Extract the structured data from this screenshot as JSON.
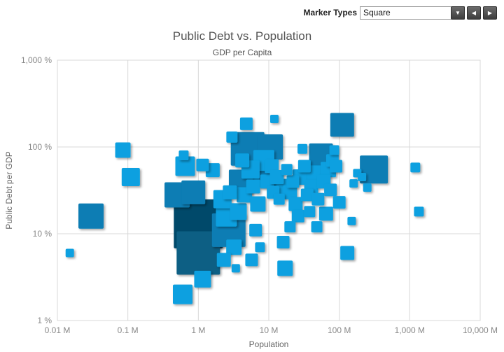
{
  "toolbar": {
    "label": "Marker Types",
    "selected": "Square",
    "dropdown_icon": "chevron-down-icon",
    "prev_icon": "chevron-left-icon",
    "next_icon": "chevron-right-icon"
  },
  "colors": {
    "light": "#0aa0e0",
    "medium": "#0a7db4",
    "dark": "#085f84",
    "darkest": "#064a6a"
  },
  "chart_data": {
    "type": "scatter",
    "title": "Public Debt vs. Population",
    "subtitle": "GDP per Capita",
    "xlabel": "Population",
    "ylabel": "Public Debt per GDP",
    "xscale": "log",
    "yscale": "log",
    "xlim": [
      10000,
      10000000000
    ],
    "ylim": [
      1,
      1000
    ],
    "x_ticks": [
      "0.01 M",
      "0.1 M",
      "1 M",
      "10 M",
      "100 M",
      "1,000 M",
      "10,000 M"
    ],
    "y_ticks": [
      "1 %",
      "10 %",
      "100 %",
      "1,000 %"
    ],
    "grid": true,
    "marker": "square",
    "points": [
      {
        "x": 15000,
        "y": 6,
        "size": 12,
        "shade": "light"
      },
      {
        "x": 30000,
        "y": 16,
        "size": 36,
        "shade": "medium"
      },
      {
        "x": 85000,
        "y": 92,
        "size": 22,
        "shade": "light"
      },
      {
        "x": 110000,
        "y": 45,
        "size": 26,
        "shade": "light"
      },
      {
        "x": 500000,
        "y": 28,
        "size": 36,
        "shade": "medium"
      },
      {
        "x": 620000,
        "y": 80,
        "size": 14,
        "shade": "light"
      },
      {
        "x": 650000,
        "y": 60,
        "size": 28,
        "shade": "light"
      },
      {
        "x": 850000,
        "y": 30,
        "size": 34,
        "shade": "medium"
      },
      {
        "x": 1000000,
        "y": 13,
        "size": 70,
        "shade": "darkest"
      },
      {
        "x": 1000000,
        "y": 6,
        "size": 62,
        "shade": "dark"
      },
      {
        "x": 600000,
        "y": 2,
        "size": 28,
        "shade": "light"
      },
      {
        "x": 1150000,
        "y": 3,
        "size": 24,
        "shade": "light"
      },
      {
        "x": 1150000,
        "y": 62,
        "size": 18,
        "shade": "light"
      },
      {
        "x": 1600000,
        "y": 54,
        "size": 20,
        "shade": "light"
      },
      {
        "x": 2700000,
        "y": 11,
        "size": 48,
        "shade": "medium"
      },
      {
        "x": 2200000,
        "y": 25,
        "size": 26,
        "shade": "light"
      },
      {
        "x": 2500000,
        "y": 16,
        "size": 30,
        "shade": "light"
      },
      {
        "x": 2300000,
        "y": 5,
        "size": 20,
        "shade": "light"
      },
      {
        "x": 3200000,
        "y": 7,
        "size": 22,
        "shade": "light"
      },
      {
        "x": 2800000,
        "y": 30,
        "size": 20,
        "shade": "light"
      },
      {
        "x": 3000000,
        "y": 130,
        "size": 16,
        "shade": "light"
      },
      {
        "x": 3400000,
        "y": 4,
        "size": 12,
        "shade": "light"
      },
      {
        "x": 3700000,
        "y": 18,
        "size": 24,
        "shade": "light"
      },
      {
        "x": 4000000,
        "y": 40,
        "size": 34,
        "shade": "medium"
      },
      {
        "x": 4200000,
        "y": 70,
        "size": 20,
        "shade": "light"
      },
      {
        "x": 4500000,
        "y": 28,
        "size": 22,
        "shade": "light"
      },
      {
        "x": 4800000,
        "y": 185,
        "size": 18,
        "shade": "light"
      },
      {
        "x": 5000000,
        "y": 95,
        "size": 48,
        "shade": "medium"
      },
      {
        "x": 5500000,
        "y": 55,
        "size": 26,
        "shade": "light"
      },
      {
        "x": 6000000,
        "y": 35,
        "size": 20,
        "shade": "light"
      },
      {
        "x": 5700000,
        "y": 5,
        "size": 18,
        "shade": "light"
      },
      {
        "x": 6500000,
        "y": 11,
        "size": 18,
        "shade": "light"
      },
      {
        "x": 7000000,
        "y": 22,
        "size": 22,
        "shade": "light"
      },
      {
        "x": 7500000,
        "y": 7,
        "size": 14,
        "shade": "light"
      },
      {
        "x": 8000000,
        "y": 48,
        "size": 36,
        "shade": "medium"
      },
      {
        "x": 8500000,
        "y": 70,
        "size": 30,
        "shade": "light"
      },
      {
        "x": 9500000,
        "y": 40,
        "size": 20,
        "shade": "light"
      },
      {
        "x": 10500000,
        "y": 100,
        "size": 36,
        "shade": "medium"
      },
      {
        "x": 11000000,
        "y": 60,
        "size": 20,
        "shade": "light"
      },
      {
        "x": 11500000,
        "y": 30,
        "size": 18,
        "shade": "light"
      },
      {
        "x": 12000000,
        "y": 210,
        "size": 12,
        "shade": "light"
      },
      {
        "x": 13000000,
        "y": 45,
        "size": 20,
        "shade": "light"
      },
      {
        "x": 14000000,
        "y": 25,
        "size": 16,
        "shade": "light"
      },
      {
        "x": 15000000,
        "y": 35,
        "size": 22,
        "shade": "light"
      },
      {
        "x": 16000000,
        "y": 8,
        "size": 18,
        "shade": "light"
      },
      {
        "x": 17000000,
        "y": 4,
        "size": 22,
        "shade": "light"
      },
      {
        "x": 18000000,
        "y": 55,
        "size": 16,
        "shade": "light"
      },
      {
        "x": 20000000,
        "y": 30,
        "size": 20,
        "shade": "light"
      },
      {
        "x": 20000000,
        "y": 12,
        "size": 16,
        "shade": "light"
      },
      {
        "x": 22000000,
        "y": 40,
        "size": 18,
        "shade": "light"
      },
      {
        "x": 24000000,
        "y": 22,
        "size": 20,
        "shade": "light"
      },
      {
        "x": 26000000,
        "y": 16,
        "size": 18,
        "shade": "light"
      },
      {
        "x": 28000000,
        "y": 45,
        "size": 22,
        "shade": "light"
      },
      {
        "x": 30000000,
        "y": 95,
        "size": 14,
        "shade": "light"
      },
      {
        "x": 32000000,
        "y": 60,
        "size": 18,
        "shade": "light"
      },
      {
        "x": 35000000,
        "y": 28,
        "size": 18,
        "shade": "light"
      },
      {
        "x": 38000000,
        "y": 18,
        "size": 16,
        "shade": "light"
      },
      {
        "x": 40000000,
        "y": 35,
        "size": 20,
        "shade": "light"
      },
      {
        "x": 45000000,
        "y": 50,
        "size": 22,
        "shade": "light"
      },
      {
        "x": 48000000,
        "y": 12,
        "size": 16,
        "shade": "light"
      },
      {
        "x": 50000000,
        "y": 25,
        "size": 18,
        "shade": "light"
      },
      {
        "x": 55000000,
        "y": 80,
        "size": 34,
        "shade": "medium"
      },
      {
        "x": 60000000,
        "y": 40,
        "size": 20,
        "shade": "light"
      },
      {
        "x": 65000000,
        "y": 17,
        "size": 20,
        "shade": "light"
      },
      {
        "x": 70000000,
        "y": 55,
        "size": 22,
        "shade": "light"
      },
      {
        "x": 75000000,
        "y": 32,
        "size": 18,
        "shade": "light"
      },
      {
        "x": 80000000,
        "y": 70,
        "size": 18,
        "shade": "light"
      },
      {
        "x": 85000000,
        "y": 92,
        "size": 14,
        "shade": "light"
      },
      {
        "x": 90000000,
        "y": 60,
        "size": 18,
        "shade": "light"
      },
      {
        "x": 100000000,
        "y": 23,
        "size": 18,
        "shade": "light"
      },
      {
        "x": 110000000,
        "y": 180,
        "size": 34,
        "shade": "medium"
      },
      {
        "x": 130000000,
        "y": 6,
        "size": 20,
        "shade": "light"
      },
      {
        "x": 150000000,
        "y": 14,
        "size": 12,
        "shade": "light"
      },
      {
        "x": 160000000,
        "y": 38,
        "size": 12,
        "shade": "light"
      },
      {
        "x": 180000000,
        "y": 50,
        "size": 12,
        "shade": "light"
      },
      {
        "x": 210000000,
        "y": 45,
        "size": 12,
        "shade": "light"
      },
      {
        "x": 250000000,
        "y": 34,
        "size": 12,
        "shade": "light"
      },
      {
        "x": 310000000,
        "y": 55,
        "size": 40,
        "shade": "medium"
      },
      {
        "x": 1200000000,
        "y": 58,
        "size": 14,
        "shade": "light"
      },
      {
        "x": 1350000000,
        "y": 18,
        "size": 14,
        "shade": "light"
      }
    ]
  }
}
